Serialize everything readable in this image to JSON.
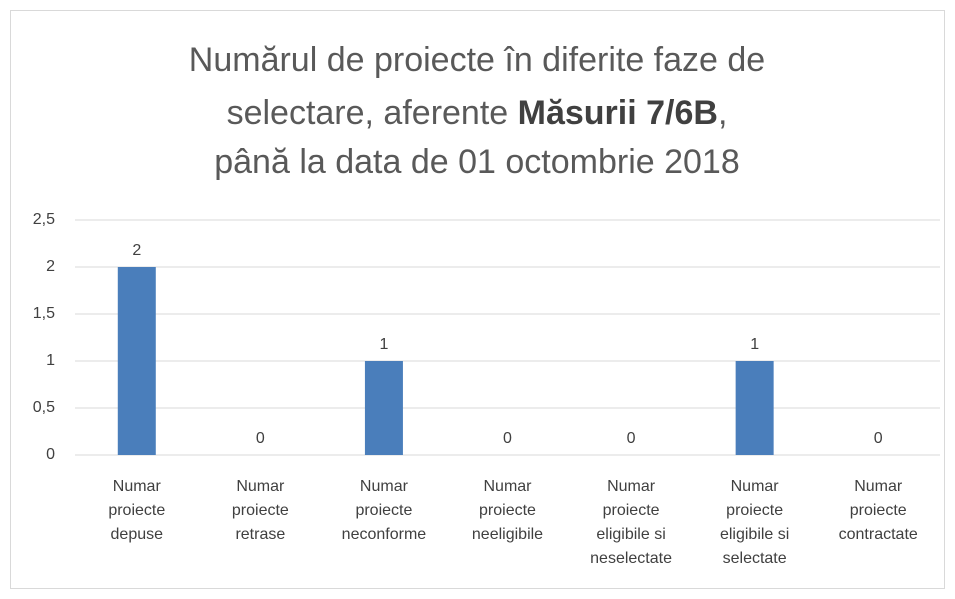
{
  "chart_data": {
    "type": "bar",
    "title": {
      "lines": [
        "Numărul de proiecte în diferite faze de",
        "selectare, aferente Măsurii 7/6B,",
        "până la data de 01 octombrie 2018"
      ],
      "bold": "Măsurii 7/6B"
    },
    "categories": [
      "Numar proiecte depuse",
      "Numar proiecte retrase",
      "Numar proiecte neconforme",
      "Numar proiecte neeligibile",
      "Numar proiecte eligibile si neselectate",
      "Numar proiecte eligibile si selectate",
      "Numar proiecte contractate"
    ],
    "values": [
      2,
      0,
      1,
      0,
      0,
      1,
      0
    ],
    "color": "#4a7ebb",
    "ylim": [
      0,
      2.5
    ],
    "yticks": [
      0,
      {
        "value": 0.5,
        "label": "0,5"
      },
      1,
      {
        "value": 1.5,
        "label": "1,5"
      },
      2,
      {
        "value": 2.5,
        "label": "2,5"
      }
    ],
    "grid": true
  }
}
